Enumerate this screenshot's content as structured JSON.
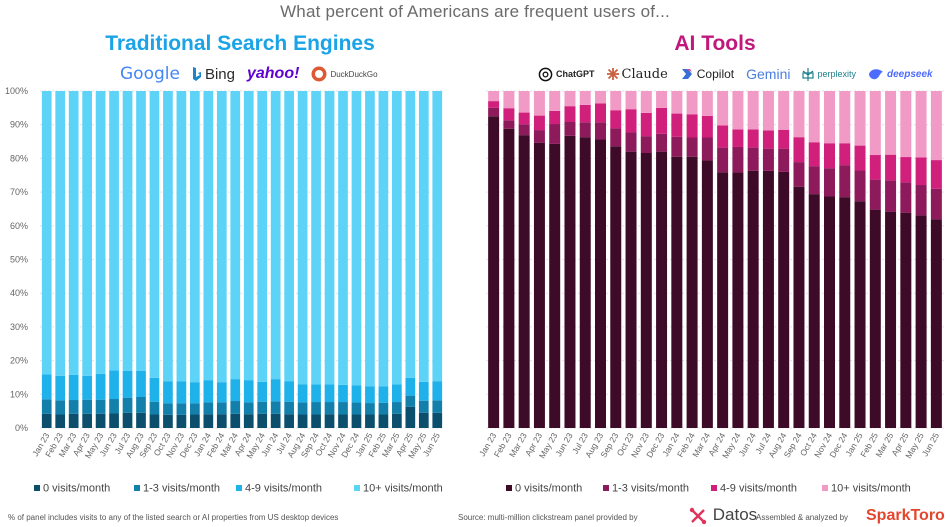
{
  "header": {
    "title": "What percent of Americans are frequent users of...",
    "left_title": "Traditional Search Engines",
    "right_title": "AI Tools"
  },
  "logos_left": [
    "Google",
    "Bing",
    "yahoo!",
    "DuckDuckGo"
  ],
  "logos_right": [
    "ChatGPT",
    "Claude",
    "Copilot",
    "Gemini",
    "perplexity",
    "deepseek"
  ],
  "footer": {
    "note": "% of panel includes visits to any of the listed search or AI properties from US desktop devices",
    "source": "Source: multi-million clickstream panel provided by",
    "datos": "Datos",
    "assembled": "Assembled & analyzed by",
    "sparktoro": "SparkToro"
  },
  "colors": {
    "search": [
      "#0b4f6c",
      "#137fab",
      "#1fb1ea",
      "#5dd3f8"
    ],
    "ai": [
      "#3d0a28",
      "#8d1a5b",
      "#d11f7c",
      "#f29ac6"
    ]
  },
  "chart_data": [
    {
      "type": "bar",
      "stacked": true,
      "title": "Traditional Search Engines",
      "categories": [
        "Jan 23",
        "Feb 23",
        "Mar 23",
        "Apr 23",
        "May 23",
        "Jun 23",
        "Jul 23",
        "Aug 23",
        "Sep 23",
        "Oct 23",
        "Nov 23",
        "Dec 23",
        "Jan 24",
        "Feb 24",
        "Mar 24",
        "Apr 24",
        "May 24",
        "Jun 24",
        "Jul 24",
        "Aug 24",
        "Sep 24",
        "Oct 24",
        "Nov 24",
        "Dec 24",
        "Jan 25",
        "Feb 25",
        "Mar 25",
        "Apr 25",
        "May 25",
        "Jun 25"
      ],
      "y_ticks": [
        "0%",
        "10%",
        "20%",
        "30%",
        "40%",
        "50%",
        "60%",
        "70%",
        "80%",
        "90%",
        "100%"
      ],
      "ylim": [
        0,
        100
      ],
      "legend_position": "bottom",
      "series": [
        {
          "name": "0 visits/month",
          "values": [
            4.2,
            4.0,
            4.2,
            4.2,
            4.2,
            4.3,
            4.5,
            4.5,
            4.0,
            3.9,
            3.9,
            4.0,
            4.1,
            4.1,
            4.2,
            4.1,
            4.2,
            4.2,
            4.1,
            4.0,
            4.0,
            4.1,
            4.0,
            4.0,
            4.0,
            4.0,
            4.2,
            6.3,
            4.5,
            4.5
          ]
        },
        {
          "name": "1-3 visits/month",
          "values": [
            4.3,
            4.2,
            4.1,
            4.2,
            4.2,
            4.3,
            4.5,
            4.7,
            3.8,
            3.4,
            3.4,
            3.3,
            3.5,
            3.5,
            3.8,
            3.5,
            3.6,
            3.7,
            3.7,
            3.6,
            3.7,
            3.6,
            3.7,
            3.6,
            3.4,
            3.5,
            3.5,
            3.3,
            3.6,
            3.7
          ]
        },
        {
          "name": "4-9 visits/month",
          "values": [
            7.4,
            7.3,
            7.5,
            7.1,
            7.7,
            8.5,
            8.0,
            7.8,
            7.1,
            6.5,
            6.5,
            6.3,
            6.6,
            6.0,
            6.5,
            6.6,
            5.9,
            6.6,
            6.1,
            5.4,
            5.2,
            5.2,
            5.1,
            5.1,
            5.0,
            4.9,
            5.2,
            5.3,
            5.6,
            5.7
          ]
        },
        {
          "name": "10+ visits/month",
          "values": [
            84.1,
            84.5,
            84.2,
            84.5,
            83.9,
            82.9,
            83.0,
            83.0,
            85.1,
            86.2,
            86.2,
            86.4,
            85.8,
            86.4,
            85.5,
            85.8,
            86.3,
            85.5,
            86.1,
            87.0,
            87.1,
            87.1,
            87.2,
            87.3,
            87.6,
            87.6,
            87.1,
            85.1,
            86.3,
            86.1
          ]
        }
      ]
    },
    {
      "type": "bar",
      "stacked": true,
      "title": "AI Tools",
      "categories": [
        "Jan 23",
        "Feb 23",
        "Mar 23",
        "Apr 23",
        "May 23",
        "Jun 23",
        "Jul 23",
        "Aug 23",
        "Sep 23",
        "Oct 23",
        "Nov 23",
        "Dec 23",
        "Jan 24",
        "Feb 24",
        "Mar 24",
        "Apr 24",
        "May 24",
        "Jun 24",
        "Jul 24",
        "Aug 24",
        "Sep 24",
        "Oct 24",
        "Nov 24",
        "Dec 24",
        "Jan 25",
        "Feb 25",
        "Mar 25",
        "Apr 25",
        "May 25",
        "Jun 25"
      ],
      "y_ticks": [
        "0%",
        "10%",
        "20%",
        "30%",
        "40%",
        "50%",
        "60%",
        "70%",
        "80%",
        "90%",
        "100%"
      ],
      "ylim": [
        0,
        100
      ],
      "legend_position": "bottom",
      "series": [
        {
          "name": "0 visits/month",
          "values": [
            92.5,
            88.8,
            86.9,
            84.6,
            84.3,
            86.7,
            86.3,
            85.6,
            83.6,
            82.0,
            81.6,
            82.0,
            80.5,
            80.5,
            79.4,
            75.9,
            75.8,
            76.3,
            76.3,
            76.0,
            71.6,
            69.4,
            68.7,
            68.5,
            67.3,
            64.8,
            64.2,
            63.9,
            63.1,
            61.9
          ]
        },
        {
          "name": "1-3 visits/month",
          "values": [
            2.5,
            2.5,
            3.2,
            3.8,
            5.9,
            4.1,
            4.4,
            5.1,
            5.3,
            5.7,
            5.0,
            5.3,
            5.9,
            5.7,
            6.8,
            7.3,
            7.6,
            6.9,
            6.6,
            6.9,
            7.3,
            8.3,
            8.4,
            9.5,
            9.1,
            8.9,
            9.3,
            9.0,
            9.0,
            9.1
          ]
        },
        {
          "name": "4-9 visits/month",
          "values": [
            2.0,
            3.6,
            3.5,
            4.3,
            3.9,
            4.7,
            5.2,
            5.6,
            5.4,
            6.9,
            6.9,
            7.7,
            6.9,
            6.9,
            6.4,
            6.6,
            5.2,
            5.4,
            5.4,
            5.6,
            7.4,
            7.1,
            7.4,
            6.5,
            7.4,
            7.3,
            7.6,
            7.5,
            8.2,
            8.5
          ]
        },
        {
          "name": "10+ visits/month",
          "values": [
            3.0,
            5.1,
            6.4,
            7.3,
            5.9,
            4.5,
            4.1,
            3.7,
            5.7,
            5.4,
            6.5,
            5.0,
            6.7,
            6.9,
            7.4,
            10.2,
            11.4,
            11.4,
            11.7,
            11.5,
            13.7,
            15.2,
            15.5,
            15.5,
            16.2,
            19.0,
            18.9,
            19.6,
            19.7,
            20.5
          ]
        }
      ]
    }
  ]
}
